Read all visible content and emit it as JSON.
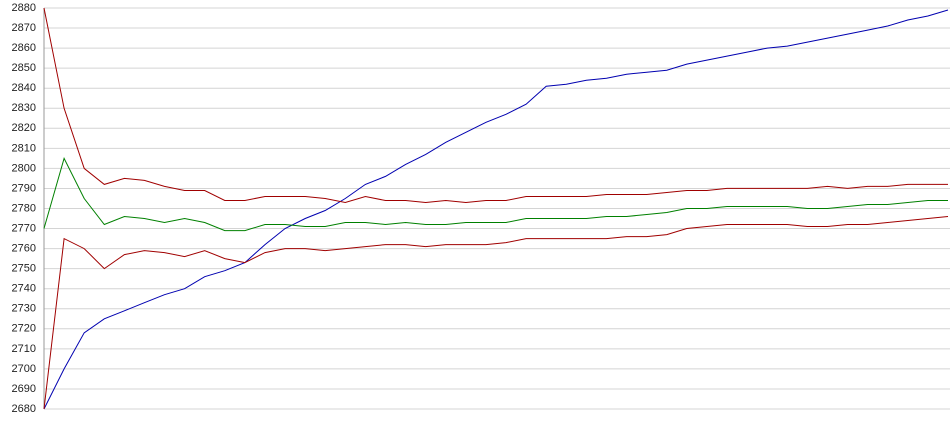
{
  "chart_data": {
    "type": "line",
    "categories": [
      null,
      null,
      null,
      null,
      null,
      null,
      null,
      null,
      null,
      null,
      null,
      null,
      null,
      null,
      null,
      null,
      null,
      null,
      null,
      null,
      null,
      null,
      null,
      null,
      null,
      null,
      null,
      null,
      null,
      null,
      null,
      null,
      null,
      null,
      null,
      null,
      null,
      null,
      null,
      null,
      null,
      null,
      null,
      null,
      null,
      null
    ],
    "series": [
      {
        "color": "#0000b0",
        "values": [
          2680,
          2700,
          2718,
          2725,
          2729,
          2733,
          2737,
          2740,
          2746,
          2749,
          2753,
          2762,
          2770,
          2775,
          2779,
          2785,
          2792,
          2796,
          2802,
          2807,
          2813,
          2818,
          2823,
          2827,
          2832,
          2841,
          2842,
          2844,
          2845,
          2847,
          2848,
          2849,
          2852,
          2854,
          2856,
          2858,
          2860,
          2861,
          2863,
          2865,
          2867,
          2869,
          2871,
          2874,
          2876,
          2879
        ]
      },
      {
        "color": "#a00000",
        "values": [
          2880,
          2830,
          2800,
          2792,
          2795,
          2794,
          2791,
          2789,
          2789,
          2784,
          2784,
          2786,
          2786,
          2786,
          2785,
          2783,
          2786,
          2784,
          2784,
          2783,
          2784,
          2783,
          2784,
          2784,
          2786,
          2786,
          2786,
          2786,
          2787,
          2787,
          2787,
          2788,
          2789,
          2789,
          2790,
          2790,
          2790,
          2790,
          2790,
          2791,
          2790,
          2791,
          2791,
          2792,
          2792,
          2792
        ]
      },
      {
        "color": "#008000",
        "values": [
          2770,
          2805,
          2785,
          2772,
          2776,
          2775,
          2773,
          2775,
          2773,
          2769,
          2769,
          2772,
          2772,
          2771,
          2771,
          2773,
          2773,
          2772,
          2773,
          2772,
          2772,
          2773,
          2773,
          2773,
          2775,
          2775,
          2775,
          2775,
          2776,
          2776,
          2777,
          2778,
          2780,
          2780,
          2781,
          2781,
          2781,
          2781,
          2780,
          2780,
          2781,
          2782,
          2782,
          2783,
          2784,
          2784
        ]
      },
      {
        "color": "#a00000",
        "values": [
          2680,
          2765,
          2760,
          2750,
          2757,
          2759,
          2758,
          2756,
          2759,
          2755,
          2753,
          2758,
          2760,
          2760,
          2759,
          2760,
          2761,
          2762,
          2762,
          2761,
          2762,
          2762,
          2762,
          2763,
          2765,
          2765,
          2765,
          2765,
          2765,
          2766,
          2766,
          2767,
          2770,
          2771,
          2772,
          2772,
          2772,
          2772,
          2771,
          2771,
          2772,
          2772,
          2773,
          2774,
          2775,
          2776
        ]
      }
    ],
    "ylim": [
      2680,
      2880
    ],
    "yticks": [
      2680,
      2690,
      2700,
      2710,
      2720,
      2730,
      2740,
      2750,
      2760,
      2770,
      2780,
      2790,
      2800,
      2810,
      2820,
      2830,
      2840,
      2850,
      2860,
      2870,
      2880
    ],
    "grid": true
  }
}
